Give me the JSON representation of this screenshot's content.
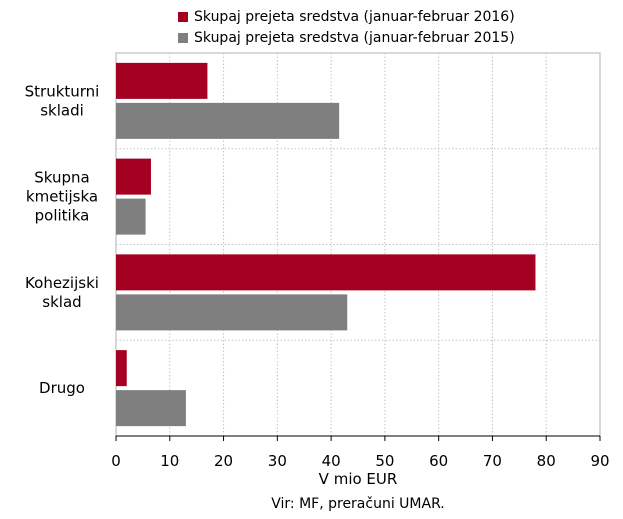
{
  "chart_data": {
    "type": "bar",
    "orientation": "horizontal",
    "categories": [
      [
        "Strukturni",
        "skladi"
      ],
      [
        "Skupna",
        "kmetijska",
        "politika"
      ],
      [
        "Kohezijski",
        "sklad"
      ],
      [
        "Drugo"
      ]
    ],
    "series": [
      {
        "name": "Skupaj prejeta sredstva (januar-februar 2016)",
        "color": "#a30022",
        "values": [
          17,
          6.5,
          78,
          2
        ]
      },
      {
        "name": "Skupaj prejeta sredstva (januar-februar 2015)",
        "color": "#7f7f7f",
        "values": [
          41.5,
          5.5,
          43,
          13
        ]
      }
    ],
    "xlim": [
      0,
      90
    ],
    "xticks": [
      0,
      10,
      20,
      30,
      40,
      50,
      60,
      70,
      80,
      90
    ],
    "xlabel": "V mio EUR",
    "source": "Vir: MF, preračuni UMAR.",
    "grid": true,
    "legend_position": "top"
  }
}
